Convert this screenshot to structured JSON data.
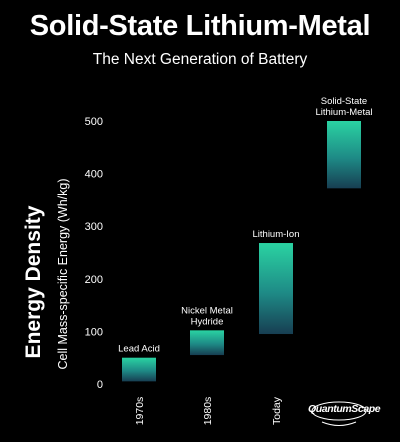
{
  "header": {
    "title": "Solid-State Lithium-Metal",
    "subtitle": "The Next Generation of Battery"
  },
  "brand": {
    "logo_text": "QuantumScape"
  },
  "colors": {
    "background": "#000000",
    "bar_top": "#2ad3a2",
    "bar_mid": "#1e8a86",
    "bar_bottom": "#173e52",
    "text": "#ffffff"
  },
  "chart_data": {
    "type": "bar",
    "subtype": "floating-range",
    "ylabel_main": "Energy Density",
    "ylabel_sub": "Cell Mass-specific Energy (Wh/kg)",
    "ylim": [
      0,
      500
    ],
    "yticks": [
      0,
      100,
      200,
      300,
      400,
      500
    ],
    "grid": false,
    "legend": "none",
    "categories": [
      "1970s",
      "1980s",
      "Today",
      ""
    ],
    "series": [
      {
        "values": [
          {
            "label": "Lead Acid",
            "low": 5,
            "high": 50
          },
          {
            "label": "Nickel Metal Hydride",
            "low": 55,
            "high": 102
          },
          {
            "label": "Lithium-Ion",
            "low": 95,
            "high": 268
          },
          {
            "label": "Solid-State Lithium-Metal",
            "low": 372,
            "high": 500
          }
        ]
      }
    ]
  }
}
